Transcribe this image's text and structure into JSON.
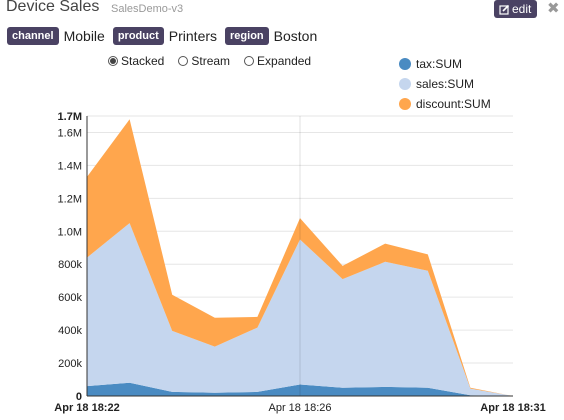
{
  "header": {
    "title": "Device Sales",
    "subtitle": "SalesDemo-v3",
    "edit_label": "edit"
  },
  "filters": [
    {
      "tag": "channel",
      "value": "Mobile"
    },
    {
      "tag": "product",
      "value": "Printers"
    },
    {
      "tag": "region",
      "value": "Boston"
    }
  ],
  "modes": [
    {
      "label": "Stacked",
      "selected": true
    },
    {
      "label": "Stream",
      "selected": false
    },
    {
      "label": "Expanded",
      "selected": false
    }
  ],
  "colors": {
    "tag_bg": "#4a4263",
    "tax": "#4a8bc2",
    "sales": "#c5d6ee",
    "discount": "#ffa64d"
  },
  "chart_data": {
    "type": "area",
    "stacked": true,
    "x": [
      "Apr 18 18:22",
      "",
      "",
      "",
      "",
      "Apr 18 18:26",
      "",
      "",
      "",
      "",
      "Apr 18 18:31"
    ],
    "x_tick_labels": [
      "Apr 18 18:22",
      "Apr 18 18:26",
      "Apr 18 18:31"
    ],
    "y_tick_labels": [
      "0",
      "200k",
      "400k",
      "600k",
      "800k",
      "1.0M",
      "1.2M",
      "1.4M",
      "1.6M",
      "1.7M"
    ],
    "ylim": [
      0,
      1700000
    ],
    "grid": true,
    "legend_position": "top-right",
    "series": [
      {
        "name": "tax:SUM",
        "color": "#4a8bc2",
        "values": [
          60000,
          80000,
          25000,
          20000,
          25000,
          70000,
          50000,
          55000,
          50000,
          5000,
          0
        ]
      },
      {
        "name": "sales:SUM",
        "color": "#c5d6ee",
        "values": [
          780000,
          970000,
          370000,
          280000,
          390000,
          880000,
          660000,
          760000,
          710000,
          40000,
          0
        ]
      },
      {
        "name": "discount:SUM",
        "color": "#ffa64d",
        "values": [
          490000,
          630000,
          220000,
          175000,
          65000,
          130000,
          80000,
          110000,
          100000,
          5000,
          0
        ]
      }
    ]
  }
}
